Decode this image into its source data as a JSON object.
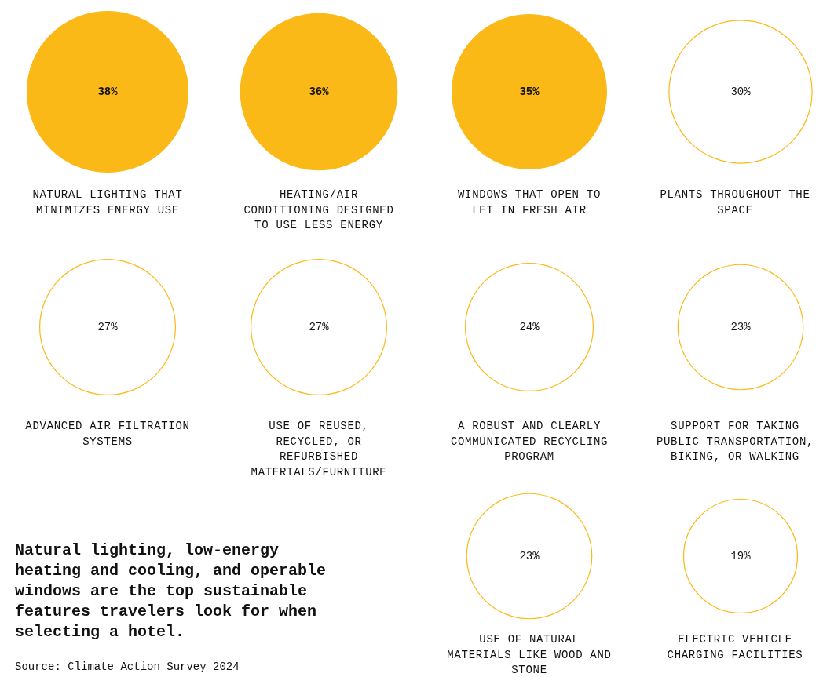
{
  "chart_data": {
    "type": "other",
    "title": "Natural lighting, low-energy heating and cooling, and operable windows are the top sustainable features travelers look for when selecting a hotel.",
    "categories": [
      "NATURAL LIGHTING THAT MINIMIZES ENERGY USE",
      "HEATING/AIR CONDITIONING DESIGNED TO USE LESS ENERGY",
      "WINDOWS THAT OPEN TO LET IN FRESH AIR",
      "PLANTS THROUGHOUT THE SPACE",
      "ADVANCED AIR FILTRATION SYSTEMS",
      "USE OF REUSED, RECYCLED, OR REFURBISHED MATERIALS/FURNITURE",
      "A ROBUST AND CLEARLY COMMUNICATED RECYCLING PROGRAM",
      "SUPPORT FOR TAKING PUBLIC TRANSPORTATION, BIKING, OR WALKING",
      "USE OF NATURAL MATERIALS LIKE WOOD AND STONE",
      "ELECTRIC VEHICLE CHARGING FACILITIES"
    ],
    "values": [
      38,
      36,
      35,
      30,
      27,
      27,
      24,
      23,
      23,
      19
    ],
    "value_labels": [
      "38%",
      "36%",
      "35%",
      "30%",
      "27%",
      "27%",
      "24%",
      "23%",
      "23%",
      "19%"
    ],
    "colors": [
      "#fbb917",
      "#fbb917",
      "#fbb917",
      "#ffffff",
      "#ffffff",
      "#ffffff",
      "#ffffff",
      "#ffffff",
      "#ffffff",
      "#ffffff"
    ],
    "annotations": [
      "Source: Climate Action Survey 2024"
    ]
  }
}
